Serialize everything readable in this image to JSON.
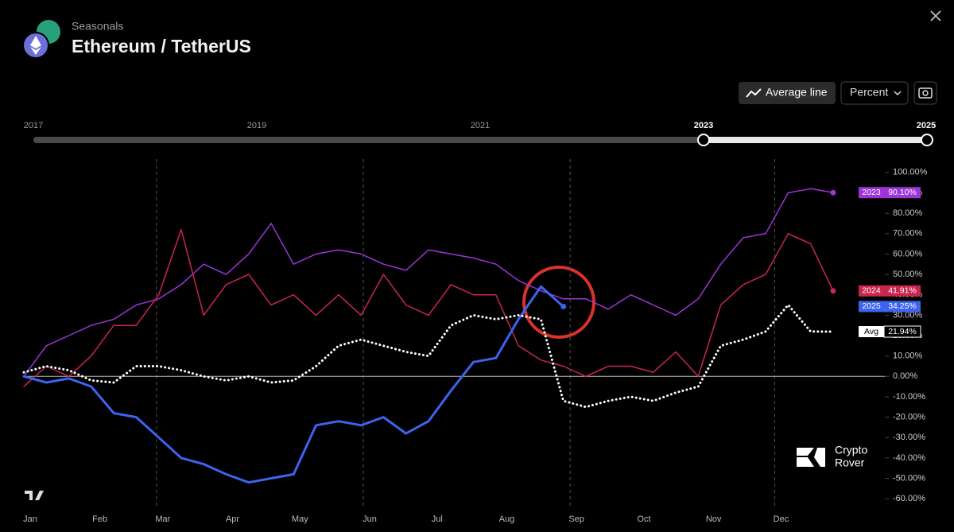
{
  "header": {
    "subtitle": "Seasonals",
    "title": "Ethereum / TetherUS"
  },
  "toolbar": {
    "average_button": "Average line",
    "mode_select": "Percent"
  },
  "timeline": {
    "labels": [
      "2017",
      "2019",
      "2021",
      "2023",
      "2025"
    ]
  },
  "watermark": {
    "line1": "Crypto",
    "line2": "Rover"
  },
  "chart_data": {
    "type": "line",
    "x": [
      0,
      10,
      20,
      30,
      40,
      50,
      60,
      70,
      80,
      90,
      100,
      110,
      120,
      130,
      140,
      150,
      160,
      170,
      180,
      190,
      200,
      210,
      220,
      230,
      240,
      250,
      260,
      270,
      280,
      290,
      300,
      310,
      320,
      330,
      340,
      350,
      360
    ],
    "xlim": [
      0,
      383
    ],
    "xticks": [
      {
        "value": 0,
        "label": "Jan"
      },
      {
        "value": 31,
        "label": "Feb"
      },
      {
        "value": 59,
        "label": "Mar"
      },
      {
        "value": 90,
        "label": "Apr"
      },
      {
        "value": 120,
        "label": "May"
      },
      {
        "value": 151,
        "label": "Jun"
      },
      {
        "value": 181,
        "label": "Jul"
      },
      {
        "value": 212,
        "label": "Aug"
      },
      {
        "value": 243,
        "label": "Sep"
      },
      {
        "value": 273,
        "label": "Oct"
      },
      {
        "value": 304,
        "label": "Nov"
      },
      {
        "value": 334,
        "label": "Dec"
      }
    ],
    "ylim": [
      -65,
      105
    ],
    "yticks": [
      {
        "value": 100,
        "label": "100.00%"
      },
      {
        "value": 90,
        "label": "90.00%"
      },
      {
        "value": 80,
        "label": "80.00%"
      },
      {
        "value": 70,
        "label": "70.00%"
      },
      {
        "value": 60,
        "label": "60.00%"
      },
      {
        "value": 50,
        "label": "50.00%"
      },
      {
        "value": 40,
        "label": "40.00%"
      },
      {
        "value": 30,
        "label": "30.00%"
      },
      {
        "value": 20,
        "label": "20.00%"
      },
      {
        "value": 10,
        "label": "10.00%"
      },
      {
        "value": 0,
        "label": "0.00%"
      },
      {
        "value": -10,
        "label": "-10.00%"
      },
      {
        "value": -20,
        "label": "-20.00%"
      },
      {
        "value": -30,
        "label": "-30.00%"
      },
      {
        "value": -40,
        "label": "-40.00%"
      },
      {
        "value": -50,
        "label": "-50.00%"
      },
      {
        "value": -60,
        "label": "-60.00%"
      }
    ],
    "series": [
      {
        "name": "2023",
        "color": "#9b35d8",
        "dashed": false,
        "values": [
          0,
          15,
          20,
          25,
          28,
          35,
          38,
          45,
          55,
          50,
          60,
          75,
          55,
          60,
          62,
          60,
          55,
          52,
          62,
          60,
          58,
          55,
          47,
          42,
          38,
          38,
          33,
          40,
          35,
          30,
          38,
          55,
          68,
          70,
          90,
          92,
          90.1
        ],
        "value_labels": [
          null,
          null,
          null,
          null,
          null,
          null,
          null,
          null,
          null,
          null,
          null,
          null,
          null,
          null,
          null,
          null,
          null,
          null,
          null,
          null,
          null,
          null,
          null,
          null,
          null,
          null,
          null,
          null,
          null,
          null,
          null,
          null,
          null,
          null,
          null,
          null,
          "90.10%"
        ]
      },
      {
        "name": "2024",
        "color": "#c9264f",
        "dashed": false,
        "values": [
          -5,
          5,
          0,
          10,
          25,
          25,
          40,
          72,
          30,
          45,
          50,
          35,
          40,
          30,
          40,
          30,
          50,
          35,
          30,
          45,
          40,
          40,
          15,
          8,
          5,
          0,
          5,
          5,
          2,
          12,
          0,
          35,
          45,
          50,
          70,
          65,
          41.91
        ],
        "value_labels": [
          null,
          null,
          null,
          null,
          null,
          null,
          null,
          null,
          null,
          null,
          null,
          null,
          null,
          null,
          null,
          null,
          null,
          null,
          null,
          null,
          null,
          null,
          null,
          null,
          null,
          null,
          null,
          null,
          null,
          null,
          null,
          null,
          null,
          null,
          null,
          null,
          "41.91%"
        ]
      },
      {
        "name": "2025",
        "color": "#3d63ef",
        "dashed": false,
        "values": [
          0,
          -3,
          -1,
          -5,
          -18,
          -20,
          -30,
          -40,
          -43,
          -48,
          -52,
          -50,
          -48,
          -24,
          -22,
          -24,
          -20,
          -28,
          -22,
          -7,
          7,
          9,
          28,
          44,
          34.25,
          null,
          null,
          null,
          null,
          null,
          null,
          null,
          null,
          null,
          null,
          null,
          null
        ],
        "value_labels": [
          null,
          null,
          null,
          null,
          null,
          null,
          null,
          null,
          null,
          null,
          null,
          null,
          null,
          null,
          null,
          null,
          null,
          null,
          null,
          null,
          null,
          null,
          null,
          null,
          "34.25%",
          null,
          null,
          null,
          null,
          null,
          null,
          null,
          null,
          null,
          null,
          null,
          null
        ]
      },
      {
        "name": "Avg",
        "color": "#ffffff",
        "dashed": true,
        "values": [
          2,
          5,
          3,
          -2,
          -3,
          5,
          5,
          3,
          0,
          -2,
          0,
          -3,
          -2,
          5,
          15,
          18,
          15,
          12,
          10,
          25,
          30,
          28,
          30,
          28,
          -12,
          -15,
          -12,
          -10,
          -12,
          -8,
          -5,
          15,
          18,
          22,
          35,
          22,
          21.94
        ],
        "value_labels": [
          null,
          null,
          null,
          null,
          null,
          null,
          null,
          null,
          null,
          null,
          null,
          null,
          null,
          null,
          null,
          null,
          null,
          null,
          null,
          null,
          null,
          null,
          null,
          null,
          null,
          null,
          null,
          null,
          null,
          null,
          null,
          null,
          null,
          null,
          null,
          null,
          "21.94%"
        ]
      }
    ]
  }
}
